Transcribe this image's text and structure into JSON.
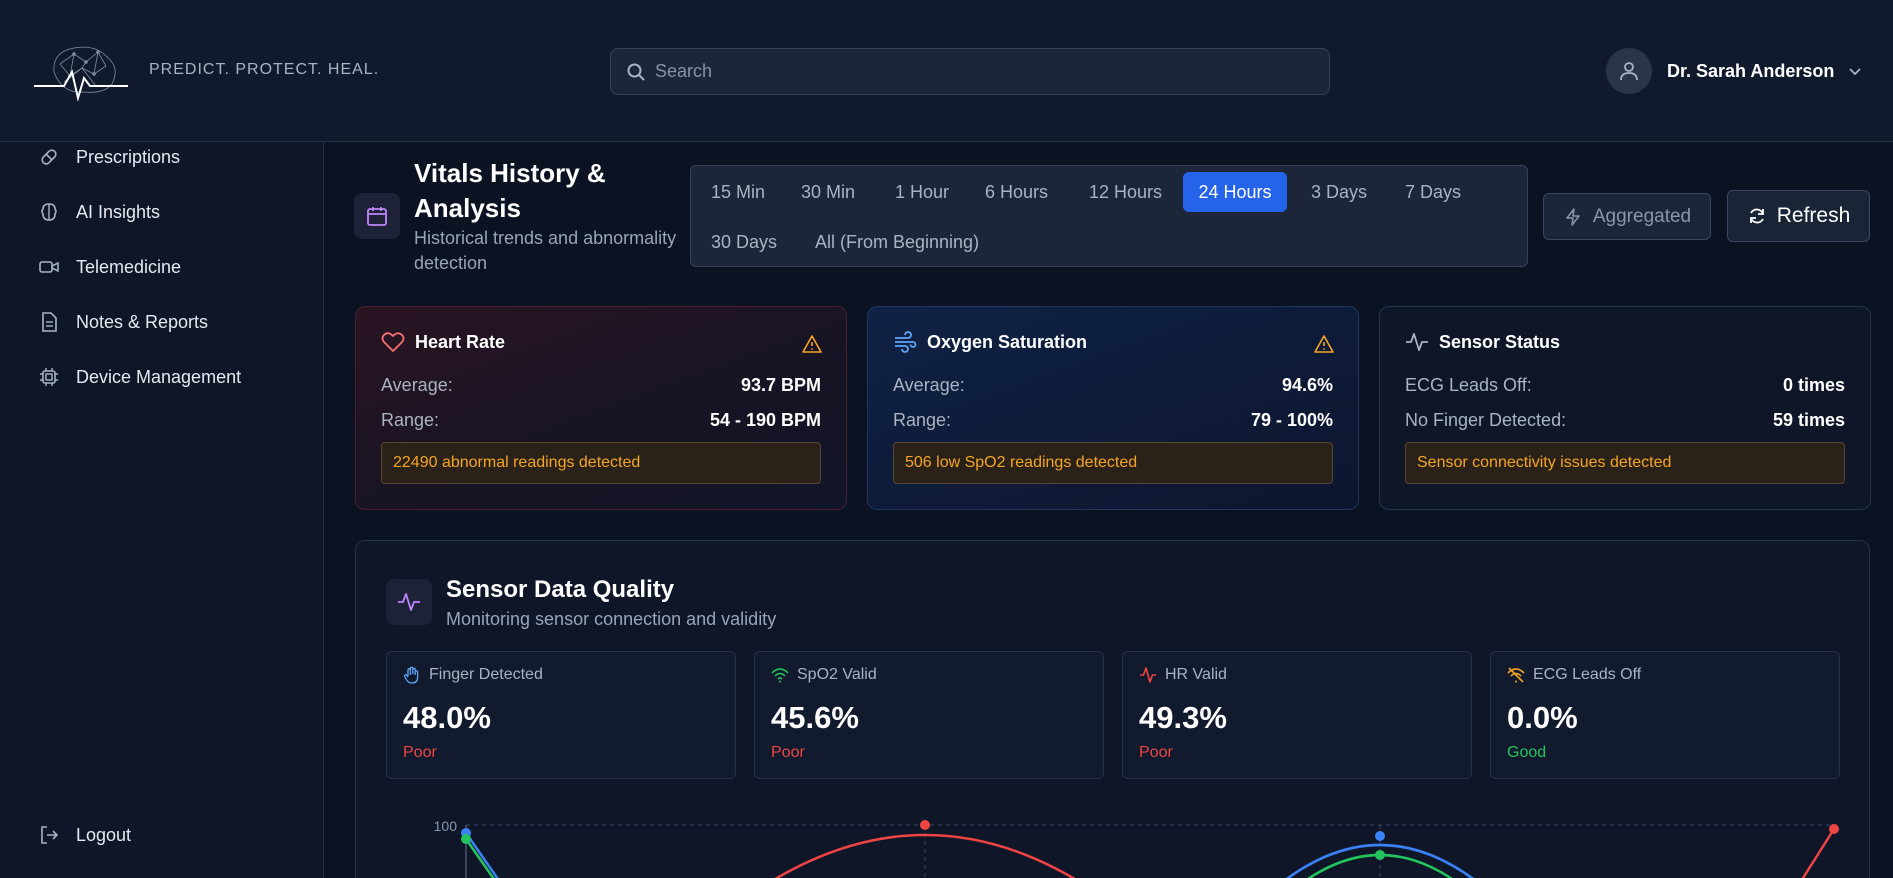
{
  "header": {
    "tagline": "PREDICT. PROTECT. HEAL.",
    "search_placeholder": "Search",
    "user_name": "Dr. Sarah Anderson"
  },
  "sidebar": {
    "items": [
      {
        "label": "Prescriptions",
        "icon": "pill-icon"
      },
      {
        "label": "AI Insights",
        "icon": "brain-icon"
      },
      {
        "label": "Telemedicine",
        "icon": "video-icon"
      },
      {
        "label": "Notes & Reports",
        "icon": "document-icon"
      },
      {
        "label": "Device Management",
        "icon": "chip-icon"
      }
    ],
    "logout_label": "Logout"
  },
  "vitals": {
    "title": "Vitals History & Analysis",
    "subtitle": "Historical trends and abnormality detection",
    "ranges": [
      "15 Min",
      "30 Min",
      "1 Hour",
      "6 Hours",
      "12 Hours",
      "24 Hours",
      "3 Days",
      "7 Days",
      "30 Days",
      "All (From Beginning)"
    ],
    "active_range": "24 Hours",
    "aggregated_label": "Aggregated",
    "refresh_label": "Refresh"
  },
  "cards": {
    "heart_rate": {
      "title": "Heart Rate",
      "avg_label": "Average:",
      "avg_value": "93.7 BPM",
      "range_label": "Range:",
      "range_value": "54 - 190 BPM",
      "alert": "22490 abnormal readings detected"
    },
    "oxygen": {
      "title": "Oxygen Saturation",
      "avg_label": "Average:",
      "avg_value": "94.6%",
      "range_label": "Range:",
      "range_value": "79 - 100%",
      "alert": "506 low SpO2 readings detected"
    },
    "sensor": {
      "title": "Sensor Status",
      "ecg_label": "ECG Leads Off:",
      "ecg_value": "0 times",
      "finger_label": "No Finger Detected:",
      "finger_value": "59 times",
      "alert": "Sensor connectivity issues detected"
    }
  },
  "quality": {
    "title": "Sensor Data Quality",
    "subtitle": "Monitoring sensor connection and validity",
    "metrics": [
      {
        "label": "Finger Detected",
        "value": "48.0%",
        "status": "Poor"
      },
      {
        "label": "SpO2 Valid",
        "value": "45.6%",
        "status": "Poor"
      },
      {
        "label": "HR Valid",
        "value": "49.3%",
        "status": "Poor"
      },
      {
        "label": "ECG Leads Off",
        "value": "0.0%",
        "status": "Good"
      }
    ]
  },
  "chart_data": {
    "type": "line",
    "ylim": [
      0,
      100
    ],
    "yticks": [
      "100"
    ],
    "series": [
      {
        "color": "#3b82f6",
        "x": [
          0,
          0.66
        ],
        "values": [
          97,
          97
        ]
      },
      {
        "color": "#22c55e",
        "x": [
          0,
          0.66
        ],
        "values": [
          93,
          93
        ]
      },
      {
        "color": "#ef4444",
        "x": [
          0.33,
          1.0
        ],
        "values": [
          100,
          100
        ]
      }
    ]
  },
  "colors": {
    "accent": "#2563eb",
    "warning": "#f5a524",
    "poor": "#ef4444",
    "good": "#22c55e"
  }
}
